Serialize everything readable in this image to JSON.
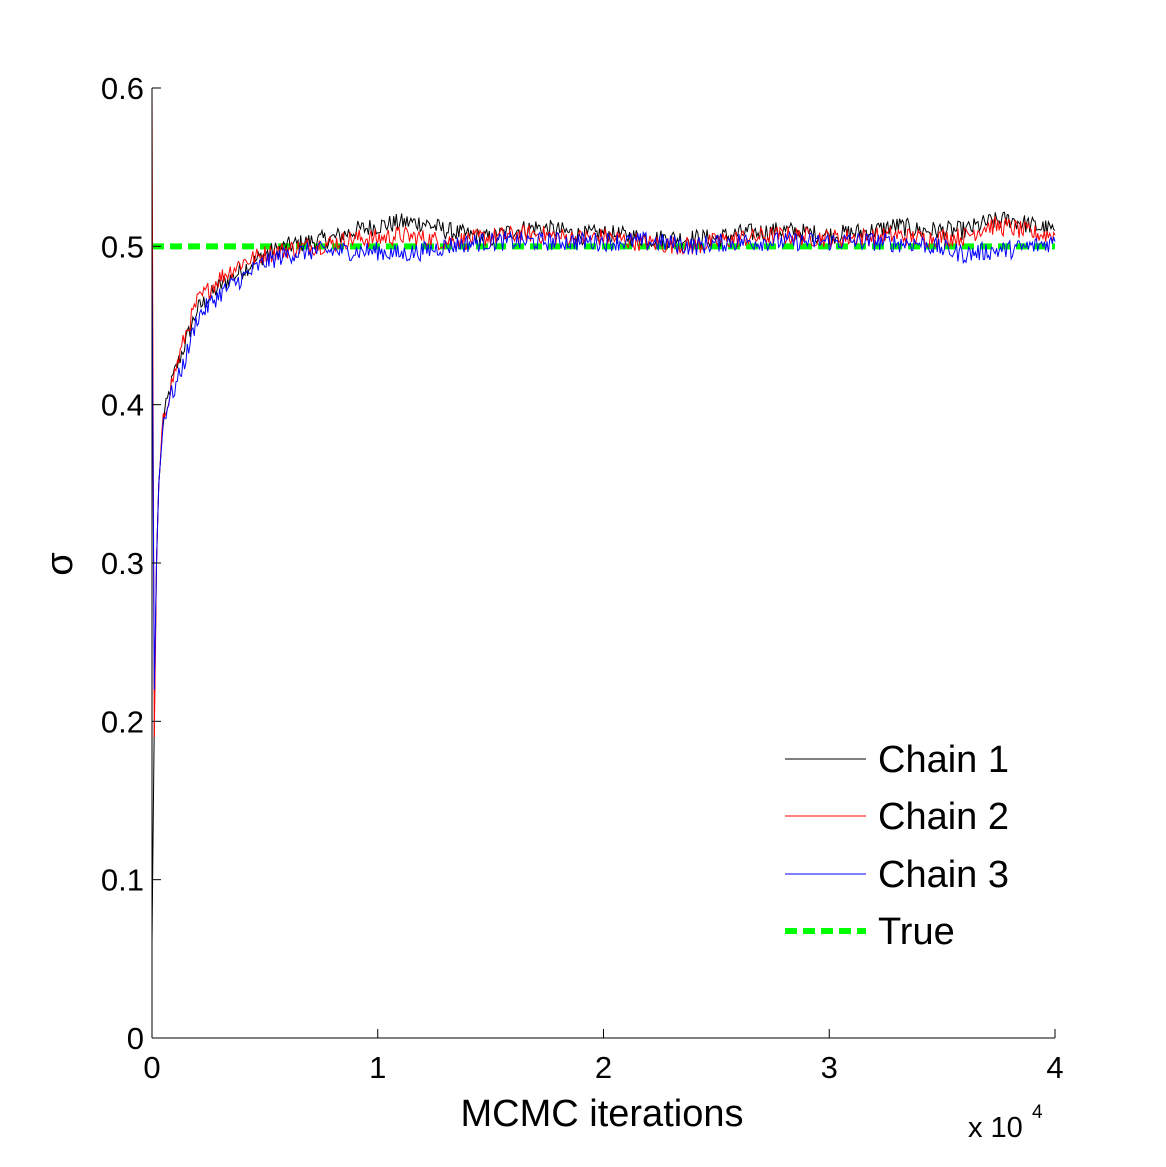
{
  "chart_data": {
    "type": "line",
    "title": "",
    "xlabel": "MCMC iterations",
    "ylabel": "σ",
    "x_exponent": {
      "base": "x 10",
      "power": "4"
    },
    "xlim": [
      0,
      40000
    ],
    "ylim": [
      0,
      0.6
    ],
    "xticks": [
      0,
      10000,
      20000,
      30000,
      40000
    ],
    "xtick_labels": [
      "0",
      "1",
      "2",
      "3",
      "4"
    ],
    "yticks": [
      0,
      0.1,
      0.2,
      0.3,
      0.4,
      0.5,
      0.6
    ],
    "ytick_labels": [
      "0",
      "0.1",
      "0.2",
      "0.3",
      "0.4",
      "0.5",
      "0.6"
    ],
    "grid": false,
    "legend_position": "bottom-right",
    "series": [
      {
        "name": "Chain 1",
        "color": "#000000",
        "style": "solid",
        "x": [
          0,
          100,
          200,
          300,
          500,
          800,
          1000,
          1500,
          2000,
          3000,
          4000,
          5000,
          6000,
          7000,
          8000,
          9000,
          10000,
          11000,
          12000,
          13000,
          14000,
          15000,
          16000,
          17000,
          18000,
          19000,
          20000,
          22000,
          24000,
          25000,
          26000,
          28000,
          30000,
          32000,
          33000,
          34000,
          36000,
          37000,
          38000,
          39000,
          40000
        ],
        "y": [
          0.06,
          0.2,
          0.3,
          0.35,
          0.39,
          0.41,
          0.42,
          0.44,
          0.46,
          0.475,
          0.485,
          0.495,
          0.5,
          0.503,
          0.505,
          0.51,
          0.513,
          0.515,
          0.515,
          0.51,
          0.507,
          0.505,
          0.51,
          0.512,
          0.51,
          0.507,
          0.508,
          0.505,
          0.505,
          0.505,
          0.508,
          0.51,
          0.507,
          0.51,
          0.513,
          0.51,
          0.51,
          0.515,
          0.517,
          0.513,
          0.51
        ]
      },
      {
        "name": "Chain 2",
        "color": "#ff0000",
        "style": "solid",
        "x": [
          0,
          100,
          200,
          300,
          500,
          800,
          1000,
          1500,
          2000,
          3000,
          4000,
          5000,
          6000,
          7000,
          8000,
          9000,
          10000,
          11000,
          12000,
          13000,
          14000,
          15000,
          16000,
          17000,
          18000,
          19000,
          20000,
          22000,
          24000,
          25000,
          26000,
          28000,
          30000,
          32000,
          33000,
          34000,
          36000,
          37000,
          38000,
          39000,
          40000
        ],
        "y": [
          0.6,
          0.19,
          0.3,
          0.35,
          0.39,
          0.41,
          0.42,
          0.445,
          0.465,
          0.48,
          0.49,
          0.495,
          0.498,
          0.5,
          0.502,
          0.505,
          0.505,
          0.507,
          0.505,
          0.503,
          0.504,
          0.506,
          0.507,
          0.508,
          0.506,
          0.505,
          0.506,
          0.502,
          0.5,
          0.503,
          0.505,
          0.507,
          0.505,
          0.506,
          0.507,
          0.505,
          0.506,
          0.513,
          0.512,
          0.508,
          0.507
        ]
      },
      {
        "name": "Chain 3",
        "color": "#0000ff",
        "style": "solid",
        "x": [
          0,
          100,
          200,
          300,
          500,
          800,
          1000,
          1500,
          2000,
          3000,
          4000,
          5000,
          6000,
          7000,
          8000,
          9000,
          10000,
          11000,
          12000,
          13000,
          14000,
          15000,
          16000,
          17000,
          18000,
          19000,
          20000,
          22000,
          24000,
          25000,
          26000,
          28000,
          30000,
          32000,
          33000,
          34000,
          36000,
          37000,
          38000,
          39000,
          40000
        ],
        "y": [
          0.5,
          0.22,
          0.3,
          0.35,
          0.39,
          0.405,
          0.41,
          0.43,
          0.455,
          0.47,
          0.48,
          0.49,
          0.495,
          0.497,
          0.497,
          0.497,
          0.497,
          0.495,
          0.497,
          0.5,
          0.502,
          0.503,
          0.503,
          0.503,
          0.503,
          0.503,
          0.503,
          0.503,
          0.5,
          0.502,
          0.503,
          0.503,
          0.503,
          0.503,
          0.502,
          0.502,
          0.495,
          0.497,
          0.498,
          0.5,
          0.503
        ]
      },
      {
        "name": "True",
        "color": "#00ff00",
        "style": "dashed",
        "x": [
          0,
          40000
        ],
        "y": [
          0.5,
          0.5
        ]
      }
    ]
  }
}
